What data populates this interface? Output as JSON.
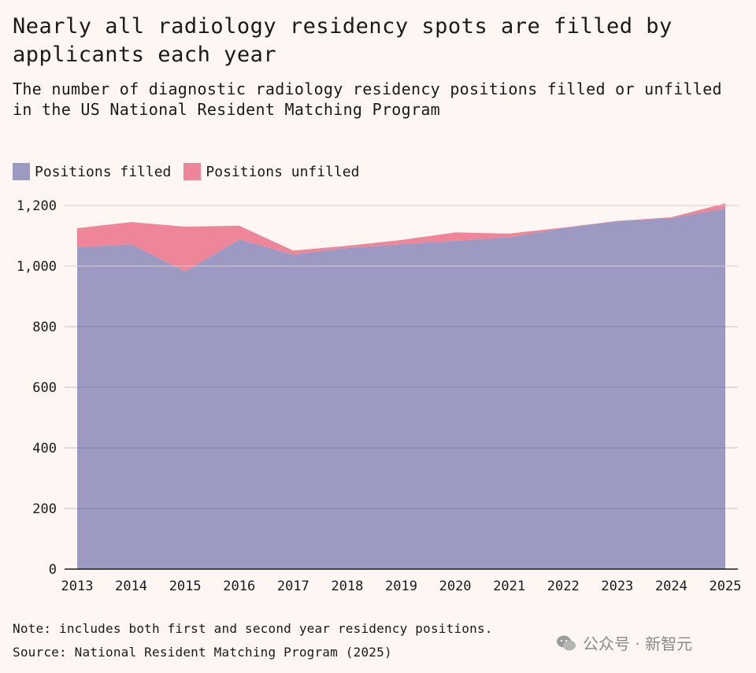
{
  "title": "Nearly all radiology residency spots are filled by applicants each year",
  "subtitle": "The number of diagnostic radiology residency positions filled or unfilled in the US National Resident Matching Program",
  "note": "Note: includes both first and second year residency positions.",
  "source": "Source: National Resident Matching Program (2025)",
  "watermark": "公众号 · 新智元",
  "colors": {
    "filled": "#9c99c3",
    "unfilled": "#ef8599",
    "background": "#fdf6f3",
    "grid": "#d9cfcd"
  },
  "chart_data": {
    "type": "area",
    "stacked": true,
    "x": [
      "2013",
      "2014",
      "2015",
      "2016",
      "2017",
      "2018",
      "2019",
      "2020",
      "2021",
      "2022",
      "2023",
      "2024",
      "2025"
    ],
    "series": [
      {
        "name": "Positions filled",
        "values": [
          1062,
          1072,
          982,
          1088,
          1038,
          1060,
          1072,
          1083,
          1095,
          1125,
          1148,
          1158,
          1190
        ]
      },
      {
        "name": "Positions unfilled",
        "values": [
          63,
          73,
          148,
          45,
          13,
          7,
          14,
          28,
          12,
          2,
          1,
          3,
          17
        ]
      }
    ],
    "ylim": [
      0,
      1200
    ],
    "yticks": [
      0,
      200,
      400,
      600,
      800,
      1000,
      1200
    ],
    "ytick_labels": [
      "0",
      "200",
      "400",
      "600",
      "800",
      "1,000",
      "1,200"
    ],
    "grid": true,
    "legend": "top-left"
  }
}
